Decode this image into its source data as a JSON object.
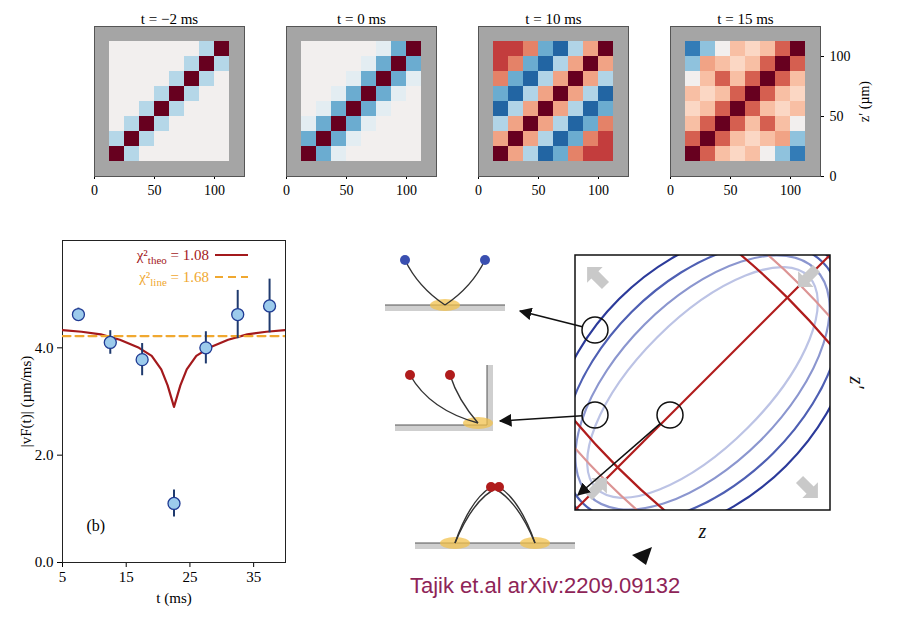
{
  "chart_data": [
    {
      "type": "heatmap",
      "title": "t = −2 ms",
      "xlim": [
        0,
        125
      ],
      "ylim": [
        0,
        125
      ],
      "xticks": [
        0,
        50,
        100
      ],
      "yticks": [
        0,
        50,
        100
      ],
      "tick_labels": "x",
      "cell_edges": [
        0,
        12.5,
        25,
        37.5,
        50,
        62.5,
        75,
        87.5,
        100,
        112.5,
        125
      ],
      "cells": [
        [
          null,
          null,
          null,
          null,
          null,
          null,
          null,
          null,
          null,
          null
        ],
        [
          null,
          0.7,
          -0.2,
          0,
          0,
          0,
          0,
          0,
          0,
          null
        ],
        [
          null,
          -0.2,
          0.7,
          -0.2,
          0,
          0,
          0,
          0,
          0,
          null
        ],
        [
          null,
          0,
          -0.2,
          0.7,
          -0.2,
          0,
          0,
          0,
          0,
          null
        ],
        [
          null,
          0,
          0,
          -0.2,
          0.7,
          -0.2,
          0,
          0,
          0,
          null
        ],
        [
          null,
          0,
          0,
          0,
          -0.2,
          0.7,
          -0.2,
          0,
          0,
          null
        ],
        [
          null,
          0,
          0,
          0,
          0,
          -0.2,
          0.7,
          -0.2,
          0,
          null
        ],
        [
          null,
          0,
          0,
          0,
          0,
          0,
          -0.2,
          0.7,
          -0.2,
          null
        ],
        [
          null,
          0,
          0,
          0,
          0,
          0,
          0,
          -0.2,
          0.7,
          null
        ],
        [
          null,
          null,
          null,
          null,
          null,
          null,
          null,
          null,
          null,
          null
        ]
      ]
    },
    {
      "type": "heatmap",
      "title": "t = 0 ms",
      "xlim": [
        0,
        125
      ],
      "ylim": [
        0,
        125
      ],
      "xticks": [
        0,
        50,
        100
      ],
      "yticks": [
        0,
        50,
        100
      ],
      "tick_labels": "x",
      "cell_edges": [
        0,
        12.5,
        25,
        37.5,
        50,
        62.5,
        75,
        87.5,
        100,
        112.5,
        125
      ],
      "cells": [
        [
          null,
          null,
          null,
          null,
          null,
          null,
          null,
          null,
          null,
          null
        ],
        [
          null,
          1,
          -0.5,
          -0.1,
          0,
          0,
          0,
          0,
          0,
          null
        ],
        [
          null,
          -0.5,
          1,
          -0.5,
          -0.1,
          0,
          0,
          0,
          0,
          null
        ],
        [
          null,
          -0.1,
          -0.5,
          1,
          -0.5,
          -0.1,
          0,
          0,
          0,
          null
        ],
        [
          null,
          0,
          -0.1,
          -0.5,
          1,
          -0.5,
          -0.1,
          0,
          0,
          null
        ],
        [
          null,
          0,
          0,
          -0.1,
          -0.5,
          1,
          -0.5,
          -0.1,
          0,
          null
        ],
        [
          null,
          0,
          0,
          0,
          -0.1,
          -0.5,
          1,
          -0.5,
          -0.1,
          null
        ],
        [
          null,
          0,
          0,
          0,
          0,
          -0.1,
          -0.5,
          1,
          -0.5,
          null
        ],
        [
          null,
          0,
          0,
          0,
          0,
          0,
          -0.1,
          -0.5,
          1,
          null
        ],
        [
          null,
          null,
          null,
          null,
          null,
          null,
          null,
          null,
          null,
          null
        ]
      ]
    },
    {
      "type": "heatmap",
      "title": "t = 10 ms",
      "xlim": [
        0,
        125
      ],
      "ylim": [
        0,
        125
      ],
      "xticks": [
        0,
        50,
        100
      ],
      "yticks": [
        0,
        50,
        100
      ],
      "tick_labels": "x",
      "cell_edges": [
        0,
        12.5,
        25,
        37.5,
        50,
        62.5,
        75,
        87.5,
        100,
        112.5,
        125
      ],
      "cells": [
        [
          null,
          null,
          null,
          null,
          null,
          null,
          null,
          null,
          null,
          null
        ],
        [
          null,
          1,
          0.4,
          -0.3,
          -0.8,
          -0.5,
          0.5,
          0.7,
          0.7,
          null
        ],
        [
          null,
          0.4,
          1,
          0.4,
          -0.3,
          -0.8,
          -0.5,
          0.5,
          0.7,
          null
        ],
        [
          null,
          -0.3,
          0.4,
          1,
          0.4,
          -0.3,
          -0.8,
          -0.5,
          0.5,
          null
        ],
        [
          null,
          -0.8,
          -0.3,
          0.4,
          1,
          0.4,
          -0.3,
          -0.8,
          -0.5,
          null
        ],
        [
          null,
          -0.5,
          -0.8,
          -0.3,
          0.4,
          1,
          0.4,
          -0.3,
          -0.8,
          null
        ],
        [
          null,
          0.5,
          -0.5,
          -0.8,
          -0.3,
          0.4,
          1,
          0.4,
          -0.3,
          null
        ],
        [
          null,
          0.7,
          0.5,
          -0.5,
          -0.8,
          -0.3,
          0.4,
          1,
          0.4,
          null
        ],
        [
          null,
          0.7,
          0.7,
          0.5,
          -0.5,
          -0.8,
          -0.3,
          0.4,
          1,
          null
        ],
        [
          null,
          null,
          null,
          null,
          null,
          null,
          null,
          null,
          null,
          null
        ]
      ]
    },
    {
      "type": "heatmap",
      "title": "t = 15 ms",
      "xlim": [
        0,
        125
      ],
      "ylim": [
        0,
        125
      ],
      "xticks": [
        0,
        50,
        100
      ],
      "yticks": [
        0,
        50,
        100
      ],
      "y_label": "z′ (µm)",
      "cell_edges": [
        0,
        12.5,
        25,
        37.5,
        50,
        62.5,
        75,
        87.5,
        100,
        112.5,
        125
      ],
      "cells": [
        [
          null,
          null,
          null,
          null,
          null,
          null,
          null,
          null,
          null,
          null
        ],
        [
          null,
          1,
          0.6,
          0.3,
          0.2,
          0.3,
          0,
          -0.4,
          -0.7,
          null
        ],
        [
          null,
          0.6,
          1,
          0.6,
          0.3,
          0.2,
          0.3,
          0.4,
          -0.4,
          null
        ],
        [
          null,
          0.3,
          0.6,
          1,
          0.6,
          0.3,
          0.6,
          0.3,
          0,
          null
        ],
        [
          null,
          0.2,
          0.3,
          0.6,
          1,
          0.6,
          0.3,
          0.2,
          0.3,
          null
        ],
        [
          null,
          0.3,
          0.2,
          0.3,
          0.6,
          1,
          0.6,
          0.3,
          0.2,
          null
        ],
        [
          null,
          0,
          0.3,
          0.6,
          0.3,
          0.6,
          1,
          0.6,
          0.3,
          null
        ],
        [
          null,
          -0.4,
          0.4,
          0.3,
          0.2,
          0.3,
          0.6,
          1,
          0.6,
          null
        ],
        [
          null,
          -0.7,
          -0.4,
          0,
          0.3,
          0.2,
          0.3,
          0.6,
          1,
          null
        ],
        [
          null,
          null,
          null,
          null,
          null,
          null,
          null,
          null,
          null,
          null
        ]
      ]
    },
    {
      "type": "scatter",
      "x_label": "t (ms)",
      "y_label": "|vF(t)| (µm/ms)",
      "panel_label": "(b)",
      "xlim": [
        5,
        40
      ],
      "ylim": [
        0,
        6
      ],
      "xticks": [
        5,
        15,
        25,
        35
      ],
      "yticks": [
        0,
        2,
        4
      ],
      "legend": "top-right",
      "series": [
        {
          "name": "χ²theo = 1.08",
          "type": "line",
          "color": "#a3191c",
          "line_style": "solid",
          "x": [
            5,
            8,
            11,
            14,
            17,
            19,
            20.5,
            21.5,
            22,
            22.5,
            23,
            23.5,
            24.5,
            26,
            28,
            31,
            34,
            37,
            40
          ],
          "values": [
            4.33,
            4.3,
            4.25,
            4.15,
            4.0,
            3.85,
            3.6,
            3.3,
            3.1,
            2.9,
            3.1,
            3.3,
            3.6,
            3.85,
            4.0,
            4.15,
            4.25,
            4.3,
            4.33
          ]
        },
        {
          "name": "χ²line = 1.68",
          "type": "line",
          "color": "#f0a830",
          "line_style": "dashed",
          "x": [
            5,
            40
          ],
          "values": [
            4.22,
            4.22
          ]
        },
        {
          "type": "scatter",
          "color": "#9ccbec",
          "marker": "circle",
          "x": [
            7.5,
            12.5,
            17.5,
            22.5,
            27.5,
            32.5,
            37.5
          ],
          "values": [
            4.62,
            4.1,
            3.78,
            1.1,
            4.0,
            4.62,
            4.78
          ],
          "errors": [
            0.12,
            0.22,
            0.3,
            0.25,
            0.3,
            0.45,
            0.5
          ]
        }
      ]
    }
  ],
  "diagram": {
    "x_label": "z",
    "y_label": "z′"
  },
  "citation": "Tajik et.al arXiv:2209.09132"
}
